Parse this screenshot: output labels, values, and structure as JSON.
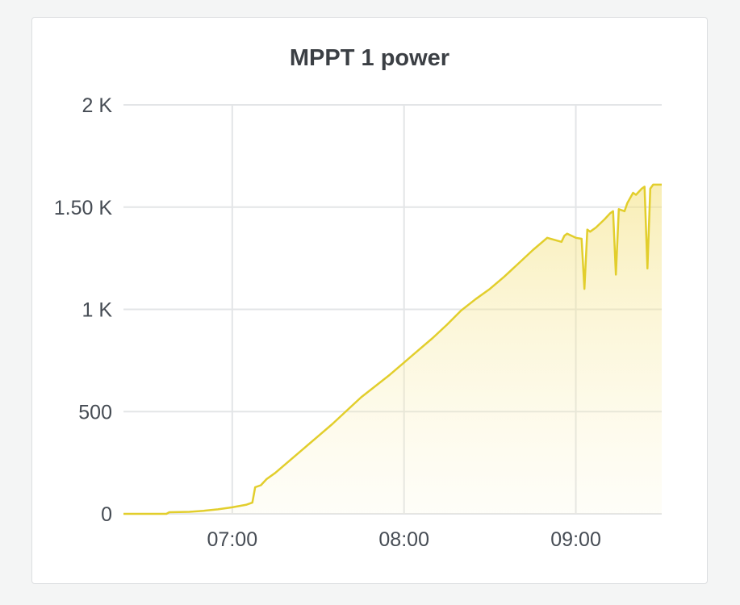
{
  "panel": {
    "title": "MPPT 1 power"
  },
  "chart_data": {
    "type": "area",
    "title": "MPPT 1 power",
    "xlabel": "",
    "ylabel": "",
    "x_ticks": [
      "07:00",
      "08:00",
      "09:00"
    ],
    "y_ticks": [
      "0",
      "500",
      "1 K",
      "1.50 K",
      "2 K"
    ],
    "xlim": [
      "06:22",
      "09:30"
    ],
    "ylim": [
      0,
      2000
    ],
    "grid": true,
    "series": [
      {
        "color": "#e2ce2c",
        "x": [
          "06:22",
          "06:37",
          "06:38",
          "06:45",
          "06:50",
          "06:55",
          "07:00",
          "07:05",
          "07:07",
          "07:08",
          "07:10",
          "07:12",
          "07:15",
          "07:20",
          "07:25",
          "07:30",
          "07:35",
          "07:40",
          "07:45",
          "07:50",
          "07:55",
          "08:00",
          "08:05",
          "08:10",
          "08:15",
          "08:20",
          "08:25",
          "08:30",
          "08:35",
          "08:40",
          "08:45",
          "08:50",
          "08:55",
          "08:56",
          "08:57",
          "09:00",
          "09:02",
          "09:03",
          "09:04",
          "09:05",
          "09:07",
          "09:10",
          "09:12",
          "09:13",
          "09:14",
          "09:15",
          "09:17",
          "09:18",
          "09:20",
          "09:21",
          "09:23",
          "09:24",
          "09:25",
          "09:26",
          "09:27",
          "09:30"
        ],
        "values": [
          0,
          0,
          8,
          10,
          15,
          22,
          32,
          45,
          55,
          130,
          140,
          170,
          200,
          260,
          320,
          380,
          440,
          505,
          570,
          625,
          680,
          740,
          800,
          860,
          925,
          995,
          1050,
          1100,
          1160,
          1225,
          1290,
          1350,
          1330,
          1360,
          1370,
          1350,
          1345,
          1100,
          1390,
          1380,
          1400,
          1440,
          1470,
          1480,
          1170,
          1490,
          1480,
          1520,
          1570,
          1560,
          1590,
          1600,
          1200,
          1590,
          1610,
          1610
        ]
      }
    ]
  }
}
